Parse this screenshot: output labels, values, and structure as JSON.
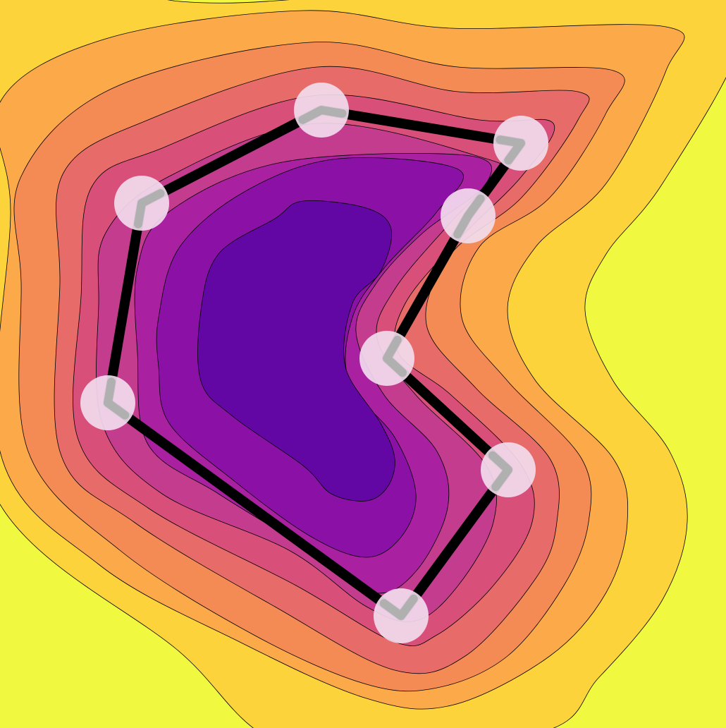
{
  "colors": {
    "background": "#f0f83f",
    "bands": [
      "#fdd33b",
      "#fca94a",
      "#f48b54",
      "#e76b68",
      "#d84f7a",
      "#c33c8d",
      "#a920a0",
      "#8b11a6",
      "#6206a4"
    ],
    "band_outline": "#000000",
    "polygon_stroke": "#000000",
    "handle_fill": "#f3dff0",
    "handle_chevron": "#b0b0b0"
  },
  "polygon": {
    "closed": true,
    "vertex_count": 8,
    "vertex_icon": "chevron-marker"
  }
}
